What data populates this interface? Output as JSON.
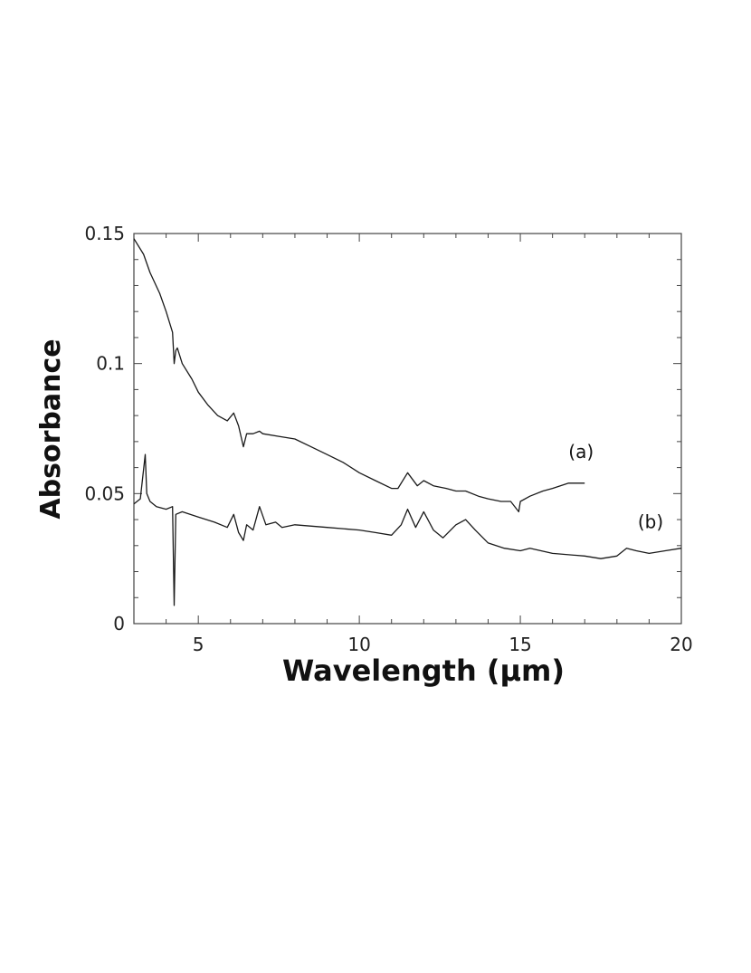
{
  "chart_data": {
    "type": "line",
    "xlabel": "Wavelength (μm)",
    "ylabel": "Absorbance",
    "xlim": [
      3,
      20
    ],
    "ylim": [
      0,
      0.15
    ],
    "x_ticks": [
      "5",
      "10",
      "15",
      "20"
    ],
    "y_ticks": [
      "0",
      "0.05",
      "0.1",
      "0.15"
    ],
    "grid": false,
    "series": [
      {
        "name": "(a)",
        "x": [
          3.0,
          3.3,
          3.5,
          3.8,
          4.0,
          4.2,
          4.25,
          4.3,
          4.35,
          4.5,
          4.8,
          5.0,
          5.3,
          5.6,
          5.9,
          6.1,
          6.25,
          6.4,
          6.5,
          6.7,
          6.9,
          7.0,
          7.5,
          8.0,
          8.5,
          9.0,
          9.5,
          10.0,
          10.5,
          11.0,
          11.2,
          11.5,
          11.8,
          12.0,
          12.3,
          12.7,
          13.0,
          13.3,
          13.7,
          14.0,
          14.4,
          14.7,
          14.95,
          15.0,
          15.3,
          15.7,
          16.0,
          16.5,
          17.0
        ],
        "y": [
          0.148,
          0.142,
          0.135,
          0.127,
          0.12,
          0.112,
          0.1,
          0.105,
          0.106,
          0.1,
          0.094,
          0.089,
          0.084,
          0.08,
          0.078,
          0.081,
          0.076,
          0.068,
          0.073,
          0.073,
          0.074,
          0.073,
          0.072,
          0.071,
          0.068,
          0.065,
          0.062,
          0.058,
          0.055,
          0.052,
          0.052,
          0.058,
          0.053,
          0.055,
          0.053,
          0.052,
          0.051,
          0.051,
          0.049,
          0.048,
          0.047,
          0.047,
          0.043,
          0.047,
          0.049,
          0.051,
          0.052,
          0.054,
          0.054
        ]
      },
      {
        "name": "(b)",
        "x": [
          3.0,
          3.2,
          3.35,
          3.4,
          3.5,
          3.7,
          4.0,
          4.2,
          4.25,
          4.3,
          4.5,
          5.0,
          5.5,
          5.9,
          6.1,
          6.25,
          6.4,
          6.5,
          6.7,
          6.9,
          7.1,
          7.4,
          7.6,
          8.0,
          9.0,
          10.0,
          10.5,
          11.0,
          11.3,
          11.5,
          11.75,
          12.0,
          12.3,
          12.6,
          13.0,
          13.3,
          13.6,
          14.0,
          14.5,
          15.0,
          15.3,
          16.0,
          17.0,
          17.5,
          18.0,
          18.3,
          18.6,
          19.0,
          19.5,
          20.0
        ],
        "y": [
          0.046,
          0.048,
          0.065,
          0.05,
          0.047,
          0.045,
          0.044,
          0.045,
          0.007,
          0.042,
          0.043,
          0.041,
          0.039,
          0.037,
          0.042,
          0.035,
          0.032,
          0.038,
          0.036,
          0.045,
          0.038,
          0.039,
          0.037,
          0.038,
          0.037,
          0.036,
          0.035,
          0.034,
          0.038,
          0.044,
          0.037,
          0.043,
          0.036,
          0.033,
          0.038,
          0.04,
          0.036,
          0.031,
          0.029,
          0.028,
          0.029,
          0.027,
          0.026,
          0.025,
          0.026,
          0.029,
          0.028,
          0.027,
          0.028,
          0.029
        ]
      }
    ]
  }
}
